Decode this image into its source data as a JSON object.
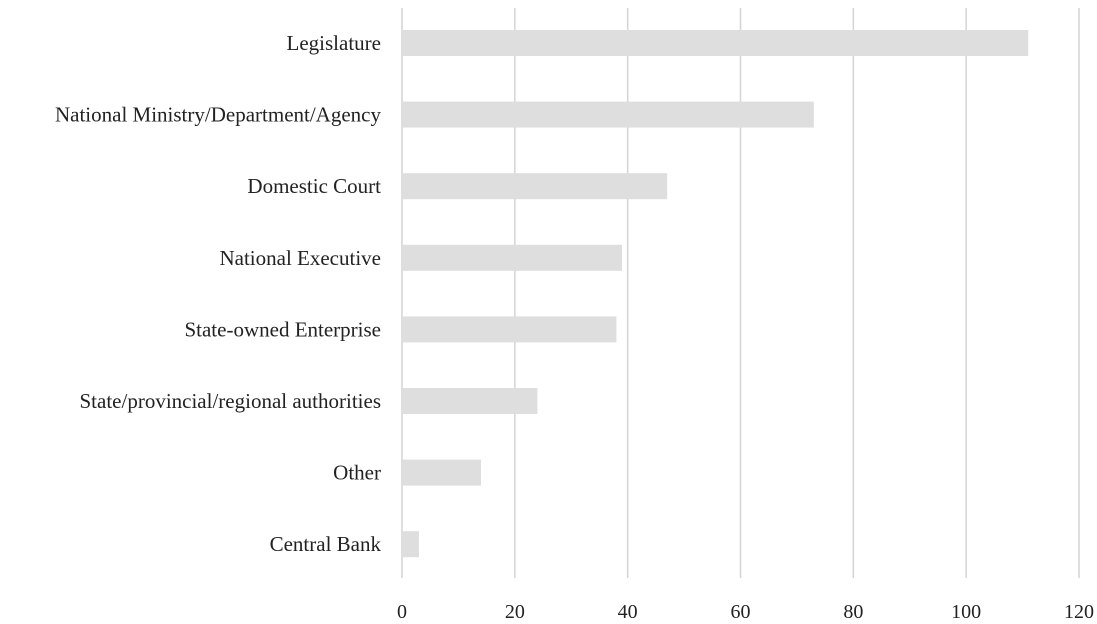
{
  "chart_data": {
    "type": "bar",
    "orientation": "horizontal",
    "title": "",
    "xlabel": "",
    "ylabel": "",
    "categories": [
      "Legislature",
      "National Ministry/Department/Agency",
      "Domestic Court",
      "National Executive",
      "State-owned Enterprise",
      "State/provincial/regional authorities",
      "Other",
      "Central Bank"
    ],
    "values": [
      111,
      73,
      47,
      39,
      38,
      24,
      14,
      3
    ],
    "xlim": [
      0,
      120
    ],
    "xticks": [
      0,
      20,
      40,
      60,
      80,
      100,
      120
    ],
    "xtick_labels": [
      "0",
      "20",
      "40",
      "60",
      "80",
      "100",
      "120"
    ],
    "grid": "vertical",
    "legend": "none",
    "colors": {
      "bar": "#dedede",
      "grid": "#d4d4d4",
      "text": "#222222"
    }
  }
}
